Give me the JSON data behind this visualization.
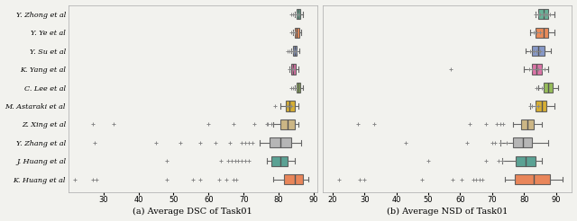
{
  "labels": [
    "Y. Zhong et al",
    "Y. Ye et al",
    "Y. Su et al",
    "K. Yang et al",
    "C. Lee et al",
    "M. Astaraki et al",
    "Z. Xing et al",
    "Y. Zhang et al",
    "J. Huang et al",
    "K. Huang et al"
  ],
  "colors": [
    "#5aab8f",
    "#e8804a",
    "#7b8fc4",
    "#d966a0",
    "#8db84a",
    "#d4a820",
    "#c8b07a",
    "#b0b0b0",
    "#4a9a8a",
    "#e87a4a"
  ],
  "dsc": {
    "whislo": [
      84.5,
      84.0,
      83.5,
      83.0,
      84.5,
      80.5,
      78.5,
      74.5,
      76.5,
      78.5
    ],
    "q1": [
      85.0,
      84.5,
      84.0,
      83.5,
      85.0,
      82.0,
      80.5,
      77.5,
      78.0,
      81.5
    ],
    "med": [
      85.5,
      85.0,
      84.5,
      84.0,
      85.5,
      83.0,
      82.5,
      80.5,
      80.5,
      84.5
    ],
    "q3": [
      86.2,
      85.8,
      85.2,
      84.8,
      86.2,
      84.5,
      84.5,
      83.5,
      82.5,
      87.0
    ],
    "whishi": [
      86.8,
      86.5,
      85.8,
      85.5,
      87.0,
      85.5,
      85.5,
      86.5,
      84.5,
      88.5
    ],
    "fliers_x": [
      [
        83.5,
        84.0,
        84.5,
        85.0,
        85.5
      ],
      [
        83.5,
        84.0,
        84.5
      ],
      [
        82.5,
        83.0,
        83.5,
        84.0,
        84.5,
        85.0
      ],
      [
        83.0,
        84.0
      ],
      [
        83.5,
        84.0,
        84.5
      ],
      [
        79.0,
        82.5,
        83.5
      ],
      [
        27.0,
        33.0,
        60.0,
        67.0,
        73.0,
        76.5,
        77.0,
        78.0
      ],
      [
        27.5,
        45.0,
        52.0,
        57.5,
        62.0,
        66.0,
        69.5,
        70.5,
        71.5,
        72.5
      ],
      [
        48.0,
        63.5,
        65.5,
        66.5,
        67.5,
        68.5,
        69.5,
        70.5,
        71.5
      ],
      [
        22.0,
        27.0,
        28.0,
        48.0,
        55.5,
        57.5,
        63.0,
        65.0,
        67.0,
        68.0
      ]
    ]
  },
  "nsd": {
    "whislo": [
      83.5,
      82.0,
      80.5,
      80.0,
      84.5,
      82.0,
      76.5,
      72.5,
      73.0,
      74.0
    ],
    "q1": [
      84.5,
      83.5,
      82.5,
      82.5,
      86.0,
      83.5,
      79.0,
      76.5,
      77.5,
      77.0
    ],
    "med": [
      86.0,
      86.0,
      84.5,
      84.0,
      87.5,
      85.5,
      81.0,
      79.5,
      80.5,
      83.0
    ],
    "q3": [
      87.5,
      87.5,
      86.5,
      85.5,
      89.0,
      87.0,
      83.0,
      82.5,
      83.5,
      88.0
    ],
    "whishi": [
      89.5,
      89.5,
      88.5,
      87.5,
      90.5,
      89.5,
      85.5,
      87.5,
      85.5,
      92.0
    ],
    "fliers_x": [
      [
        83.5,
        84.5,
        85.0,
        86.0,
        86.5,
        87.0,
        87.5,
        88.0
      ],
      [
        83.0,
        84.0,
        85.0
      ],
      [
        82.0,
        83.0,
        84.0,
        85.0
      ],
      [
        57.0,
        81.5,
        82.5,
        83.5,
        84.5,
        85.5,
        86.5
      ],
      [
        84.0,
        85.5
      ],
      [
        82.0,
        82.5,
        83.5,
        84.5
      ],
      [
        28.0,
        33.0,
        63.0,
        68.0,
        71.5,
        72.5,
        73.5
      ],
      [
        43.0,
        62.0,
        70.0,
        71.0,
        72.5,
        74.5
      ],
      [
        50.0,
        68.0,
        72.0,
        73.0
      ],
      [
        22.0,
        28.5,
        30.0,
        48.0,
        57.5,
        60.5,
        64.0,
        65.0,
        66.0,
        67.0
      ]
    ]
  },
  "dsc_xlim": [
    20,
    91
  ],
  "nsd_xlim": [
    17,
    95
  ],
  "dsc_xticks": [
    30,
    40,
    50,
    60,
    70,
    80,
    90
  ],
  "nsd_xticks": [
    20,
    30,
    40,
    50,
    60,
    70,
    80,
    90
  ],
  "title_dsc": "(a) Average DSC of Task01",
  "title_nsd": "(b) Average NSD of Task01",
  "bg_color": "#f2f2ee"
}
